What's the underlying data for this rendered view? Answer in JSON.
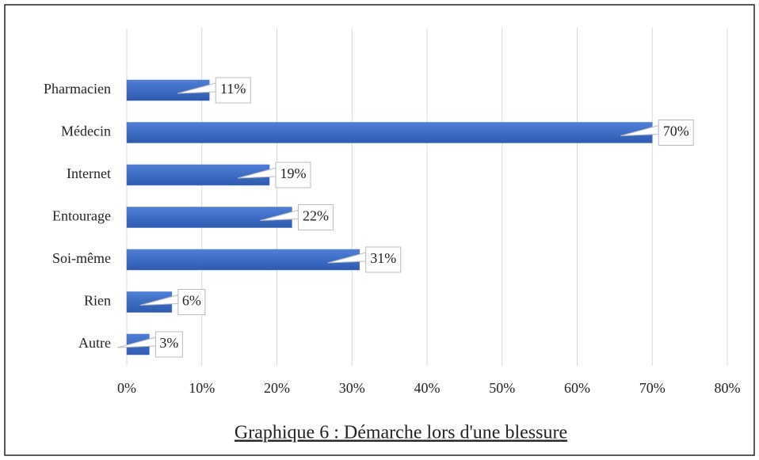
{
  "chart_data": {
    "type": "bar",
    "orientation": "horizontal",
    "title": "Graphique 6 : Démarche lors d'une blessure",
    "categories": [
      "Pharmacien",
      "Médecin",
      "Internet",
      "Entourage",
      "Soi-même",
      "Rien",
      "Autre"
    ],
    "values": [
      11,
      70,
      19,
      22,
      31,
      6,
      3
    ],
    "value_labels": [
      "11%",
      "70%",
      "19%",
      "22%",
      "31%",
      "6%",
      "3%"
    ],
    "color": "#4472c4",
    "xlim": [
      0,
      80
    ],
    "xticks": [
      {
        "value": 0,
        "label": "0%"
      },
      {
        "value": 10,
        "label": "10%"
      },
      {
        "value": 20,
        "label": "20%"
      },
      {
        "value": 30,
        "label": "30%"
      },
      {
        "value": 40,
        "label": "40%"
      },
      {
        "value": 50,
        "label": "50%"
      },
      {
        "value": 60,
        "label": "60%"
      },
      {
        "value": 70,
        "label": "70%"
      },
      {
        "value": 80,
        "label": "80%"
      }
    ],
    "grid": true
  }
}
